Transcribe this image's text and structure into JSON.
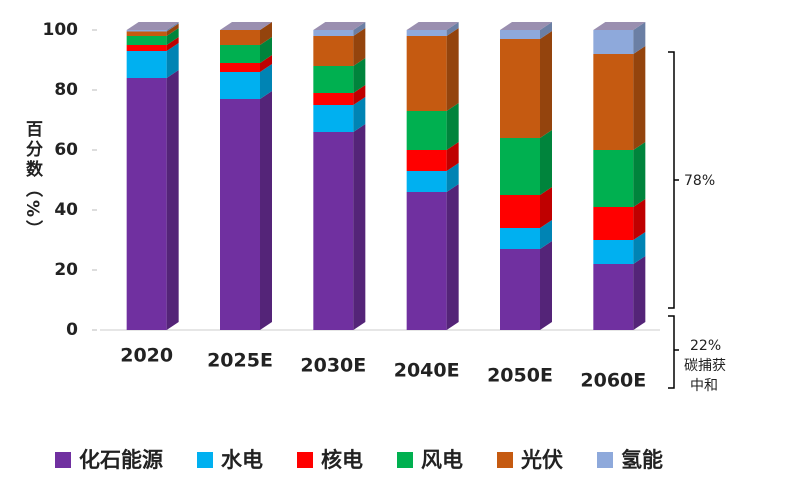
{
  "chart_data": {
    "type": "bar",
    "stacked": true,
    "y_label": "百分数（%）",
    "categories": [
      "2020",
      "2025E",
      "2030E",
      "2040E",
      "2050E",
      "2060E"
    ],
    "series": [
      {
        "name": "化石能源",
        "color": "#7030a0",
        "values": [
          84,
          77,
          66,
          46,
          27,
          22
        ]
      },
      {
        "name": "水电",
        "color": "#00b0f0",
        "values": [
          9,
          9,
          9,
          7,
          7,
          8
        ]
      },
      {
        "name": "核电",
        "color": "#ff0000",
        "values": [
          2,
          3,
          4,
          7,
          11,
          11
        ]
      },
      {
        "name": "风电",
        "color": "#00b050",
        "values": [
          3,
          6,
          9,
          13,
          19,
          19
        ]
      },
      {
        "name": "光伏",
        "color": "#c55a11",
        "values": [
          1.5,
          5,
          10,
          25,
          33,
          32
        ]
      },
      {
        "name": "氢能",
        "color": "#8ea9db",
        "values": [
          0.5,
          0,
          2,
          2,
          3,
          8
        ]
      }
    ],
    "ylim": [
      0,
      100
    ],
    "yticks": [
      0,
      20,
      40,
      60,
      80,
      100
    ],
    "annotations": [
      "78%",
      "22%",
      "碳捕获",
      "中和"
    ]
  }
}
